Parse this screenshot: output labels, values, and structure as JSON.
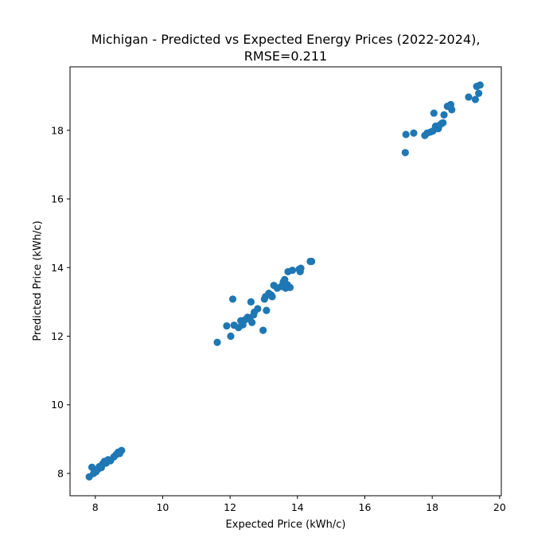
{
  "chart_data": {
    "type": "scatter",
    "title_line1": "Michigan - Predicted vs Expected Energy Prices (2022-2024),",
    "title_line2": "RMSE=0.211",
    "xlabel": "Expected Price (kWh/c)",
    "ylabel": "Predicted Price (kWh/c)",
    "xlim": [
      7.25,
      20.05
    ],
    "ylim": [
      7.35,
      19.85
    ],
    "xticks": [
      8,
      10,
      12,
      14,
      16,
      18,
      20
    ],
    "yticks": [
      8,
      10,
      12,
      14,
      16,
      18
    ],
    "grid": false,
    "marker_color": "#1f77b4",
    "points": [
      [
        7.82,
        7.9
      ],
      [
        7.9,
        8.18
      ],
      [
        7.95,
        8.0
      ],
      [
        8.02,
        8.05
      ],
      [
        8.08,
        8.12
      ],
      [
        8.12,
        8.2
      ],
      [
        8.18,
        8.17
      ],
      [
        8.22,
        8.28
      ],
      [
        8.27,
        8.35
      ],
      [
        8.32,
        8.3
      ],
      [
        8.38,
        8.4
      ],
      [
        8.45,
        8.37
      ],
      [
        8.55,
        8.48
      ],
      [
        8.62,
        8.55
      ],
      [
        8.68,
        8.62
      ],
      [
        8.72,
        8.58
      ],
      [
        8.78,
        8.67
      ],
      [
        11.62,
        11.82
      ],
      [
        11.9,
        12.3
      ],
      [
        12.02,
        12.0
      ],
      [
        12.08,
        13.08
      ],
      [
        12.12,
        12.32
      ],
      [
        12.25,
        12.25
      ],
      [
        12.32,
        12.45
      ],
      [
        12.38,
        12.33
      ],
      [
        12.45,
        12.48
      ],
      [
        12.52,
        12.55
      ],
      [
        12.58,
        12.52
      ],
      [
        12.62,
        13.0
      ],
      [
        12.65,
        12.4
      ],
      [
        12.7,
        12.62
      ],
      [
        12.72,
        12.7
      ],
      [
        12.82,
        12.8
      ],
      [
        12.98,
        12.17
      ],
      [
        13.02,
        13.08
      ],
      [
        13.05,
        13.15
      ],
      [
        13.08,
        12.75
      ],
      [
        13.15,
        13.25
      ],
      [
        13.22,
        13.2
      ],
      [
        13.25,
        13.15
      ],
      [
        13.3,
        13.48
      ],
      [
        13.4,
        13.4
      ],
      [
        13.52,
        13.45
      ],
      [
        13.58,
        13.58
      ],
      [
        13.62,
        13.65
      ],
      [
        13.65,
        13.4
      ],
      [
        13.7,
        13.5
      ],
      [
        13.72,
        13.88
      ],
      [
        13.78,
        13.42
      ],
      [
        13.85,
        13.92
      ],
      [
        14.05,
        13.95
      ],
      [
        14.08,
        13.88
      ],
      [
        14.1,
        13.98
      ],
      [
        14.38,
        14.18
      ],
      [
        14.42,
        14.18
      ],
      [
        17.2,
        17.35
      ],
      [
        17.22,
        17.88
      ],
      [
        17.45,
        17.92
      ],
      [
        17.78,
        17.85
      ],
      [
        17.85,
        17.92
      ],
      [
        17.95,
        17.95
      ],
      [
        18.02,
        17.98
      ],
      [
        18.05,
        18.5
      ],
      [
        18.1,
        18.12
      ],
      [
        18.18,
        18.05
      ],
      [
        18.22,
        18.15
      ],
      [
        18.28,
        18.2
      ],
      [
        18.32,
        18.22
      ],
      [
        18.35,
        18.45
      ],
      [
        18.45,
        18.7
      ],
      [
        18.55,
        18.75
      ],
      [
        18.58,
        18.6
      ],
      [
        19.08,
        18.97
      ],
      [
        19.28,
        18.9
      ],
      [
        19.32,
        19.28
      ],
      [
        19.38,
        19.08
      ],
      [
        19.42,
        19.32
      ]
    ]
  }
}
